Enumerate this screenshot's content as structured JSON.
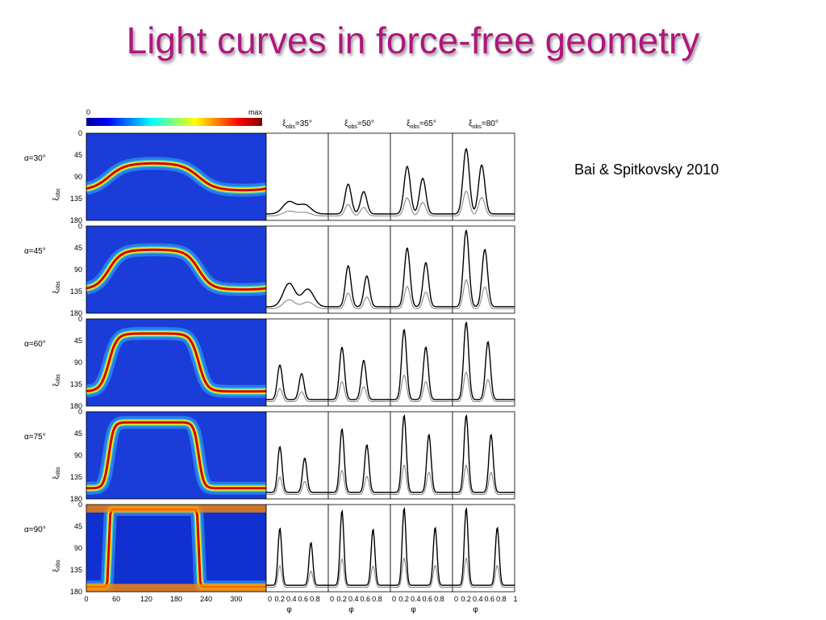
{
  "slide": {
    "title": "Light curves in force-free geometry",
    "citation": "Bai & Spitkovsky 2010",
    "figure": {
      "colorbar": {
        "min_label": "0",
        "max_label": "max"
      },
      "columns": [
        {
          "base": "ξ",
          "sub": "obs",
          "value": "=35°"
        },
        {
          "base": "ξ",
          "sub": "obs",
          "value": "=50°"
        },
        {
          "base": "ξ",
          "sub": "obs",
          "value": "=65°"
        },
        {
          "base": "ξ",
          "sub": "obs",
          "value": "=80°"
        }
      ],
      "rows": [
        {
          "label": "α=30°"
        },
        {
          "label": "α=45°"
        },
        {
          "label": "α=60°"
        },
        {
          "label": "α=75°"
        },
        {
          "label": "α=90°"
        }
      ],
      "y_label": {
        "base": "ξ",
        "sub": "obs"
      },
      "yticks": [
        "0",
        "45",
        "90",
        "135",
        "180"
      ],
      "map_xticks": [
        "0",
        "60",
        "120",
        "180",
        "240",
        "300"
      ],
      "curve_xticks": [
        "0",
        "0.2",
        "0.4",
        "0.6",
        "0.8"
      ],
      "curve_xtick_end": "1",
      "x_label": "φ"
    }
  }
}
